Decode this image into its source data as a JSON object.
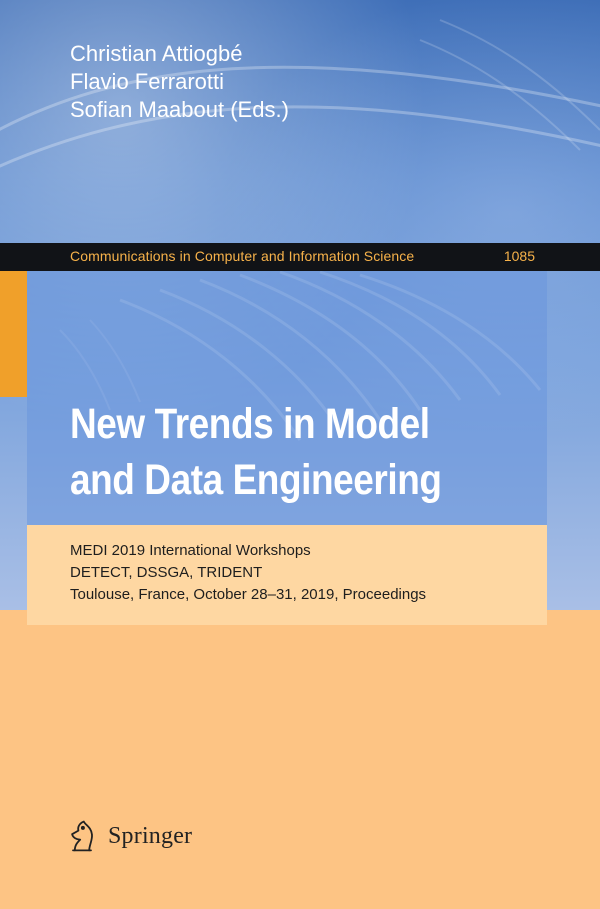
{
  "cover": {
    "authors": [
      "Christian Attiogbé",
      "Flavio Ferrarotti",
      "Sofian Maabout (Eds.)"
    ],
    "series": {
      "name": "Communications in Computer and Information Science",
      "number": "1085"
    },
    "title_lines": [
      "New Trends in Model",
      "and Data Engineering"
    ],
    "subtitle_lines": [
      "MEDI 2019 International Workshops",
      "DETECT, DSSGA, TRIDENT",
      "Toulouse, France, October 28–31, 2019, Proceedings"
    ],
    "publisher": {
      "name": "Springer",
      "logo_icon": "springer-chess-knight-icon"
    }
  },
  "colors": {
    "background": "#fdc484",
    "photo_blue": "#5e8ccf",
    "series_band": "#111317",
    "series_text": "#f7b24a",
    "accent_tab": "#f0a02a",
    "subtitle_panel": "#fed7a2"
  }
}
